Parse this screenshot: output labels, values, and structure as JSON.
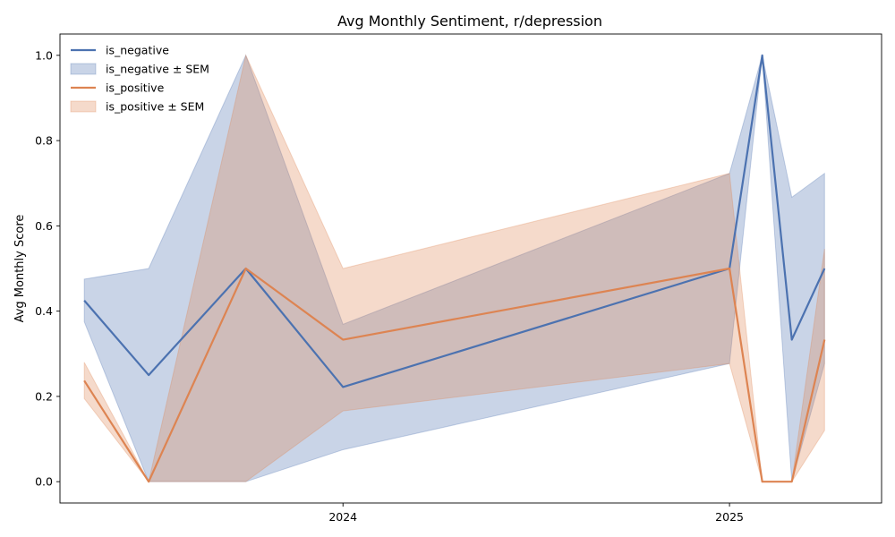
{
  "chart_data": {
    "type": "line",
    "title": "Avg Monthly Sentiment, r/depression",
    "xlabel": "",
    "ylabel": "Avg Monthly Score",
    "x_ticks": [
      {
        "date": "2024-01-01",
        "label": "2024"
      },
      {
        "date": "2025-01-01",
        "label": "2025"
      }
    ],
    "xlim": [
      "2023-04-08",
      "2025-05-25"
    ],
    "ylim": [
      -0.05,
      1.05
    ],
    "y_ticks": [
      0.0,
      0.2,
      0.4,
      0.6,
      0.8,
      1.0
    ],
    "y_tick_labels": [
      "0.0",
      "0.2",
      "0.4",
      "0.6",
      "0.8",
      "1.0"
    ],
    "x": [
      "2023-05-01",
      "2023-07-01",
      "2023-10-01",
      "2024-01-01",
      "2025-01-01",
      "2025-02-01",
      "2025-03-01",
      "2025-04-01"
    ],
    "series": [
      {
        "name": "is_negative",
        "band_name": "is_negative ± SEM",
        "color": "#4c72b0",
        "values": [
          0.425,
          0.25,
          0.5,
          0.222,
          0.5,
          1.0,
          0.333,
          0.5
        ],
        "lower": [
          0.375,
          0.0,
          0.0,
          0.075,
          0.277,
          1.0,
          0.0,
          0.277
        ],
        "upper": [
          0.475,
          0.5,
          1.0,
          0.369,
          0.723,
          1.0,
          0.667,
          0.723
        ]
      },
      {
        "name": "is_positive",
        "band_name": "is_positive ± SEM",
        "color": "#dd8452",
        "values": [
          0.237,
          0.0,
          0.5,
          0.333,
          0.5,
          0.0,
          0.0,
          0.333
        ],
        "lower": [
          0.195,
          0.0,
          0.0,
          0.166,
          0.277,
          0.0,
          0.0,
          0.12
        ],
        "upper": [
          0.28,
          0.0,
          1.0,
          0.5,
          0.723,
          0.0,
          0.0,
          0.546
        ]
      }
    ],
    "legend": "top-left",
    "grid": false
  }
}
